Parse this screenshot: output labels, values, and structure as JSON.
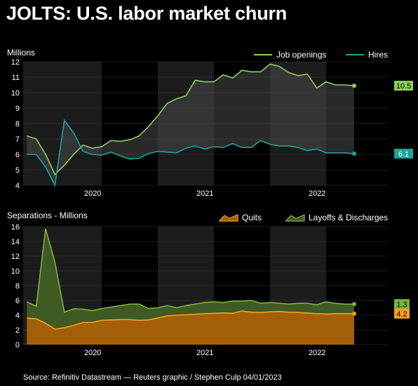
{
  "title": "JOLTS: U.S. labor market churn",
  "source": "Source: Refinitiv Datastream — Reuters graphic / Stephen Culp 04/01/2023",
  "colors": {
    "background": "#000000",
    "shade_band": "#1c1c1c",
    "grid": "#3a3a3a",
    "job_openings": "#8fcd5c",
    "hires": "#1ba39c",
    "openings_fill": "#4a4a4a",
    "quits": "#f7a01c",
    "quits_fill": "#a35f08",
    "layoffs": "#7cb342",
    "layoffs_fill": "#3f5a22"
  },
  "chart_data": [
    {
      "type": "line",
      "name": "top",
      "title": "",
      "ylabel": "Millions",
      "xlabel": "",
      "ylim": [
        4,
        12
      ],
      "yticks": [
        4,
        5,
        6,
        7,
        8,
        9,
        10,
        11,
        12
      ],
      "xlim": [
        2019.3,
        2022.55
      ],
      "xticks": [
        {
          "label": "2020",
          "value": 2019.92
        },
        {
          "label": "2021",
          "value": 2020.92
        },
        {
          "label": "2022",
          "value": 2021.92
        }
      ],
      "shaded_periods": [
        [
          2019.3,
          2020.0
        ],
        [
          2020.5,
          2021.0
        ],
        [
          2021.5,
          2022.0
        ]
      ],
      "legend_position": "top-right",
      "x": [
        "2019-05",
        "2019-06",
        "2019-07",
        "2019-08",
        "2019-09",
        "2019-10",
        "2019-11",
        "2019-12",
        "2020-01",
        "2020-02",
        "2020-03",
        "2020-04",
        "2020-05",
        "2020-06",
        "2020-07",
        "2020-08",
        "2020-09",
        "2020-10",
        "2020-11",
        "2020-12",
        "2021-01",
        "2021-02",
        "2021-03",
        "2021-04",
        "2021-05",
        "2021-06",
        "2021-07",
        "2021-08",
        "2021-09",
        "2021-10",
        "2021-11",
        "2021-12",
        "2022-01",
        "2022-02",
        "2022-03",
        "2022-04",
        "2022-05",
        "2022-06"
      ],
      "series": [
        {
          "name": "Job openings",
          "end_label": "10.5",
          "values": [
            7.2,
            7.0,
            6.0,
            4.7,
            5.3,
            6.0,
            6.6,
            6.4,
            6.5,
            6.9,
            6.85,
            6.95,
            7.2,
            7.8,
            8.5,
            9.3,
            9.6,
            9.8,
            10.8,
            10.7,
            10.7,
            11.15,
            10.95,
            11.45,
            11.35,
            11.35,
            11.85,
            11.7,
            11.3,
            11.1,
            11.2,
            10.3,
            10.7,
            10.5,
            10.5,
            10.45,
            null,
            null
          ]
        },
        {
          "name": "Hires",
          "end_label": "6.1",
          "values": [
            6.0,
            6.0,
            5.2,
            4.0,
            8.2,
            7.4,
            6.2,
            6.0,
            5.95,
            6.15,
            5.9,
            5.7,
            5.75,
            6.05,
            6.2,
            6.15,
            6.1,
            6.4,
            6.55,
            6.35,
            6.5,
            6.45,
            6.7,
            6.45,
            6.45,
            6.9,
            6.65,
            6.55,
            6.55,
            6.45,
            6.25,
            6.35,
            6.1,
            6.1,
            6.1,
            6.05,
            null,
            null
          ]
        }
      ]
    },
    {
      "type": "area",
      "name": "bottom",
      "title": "",
      "ylabel": "Separations - Millions",
      "xlabel": "",
      "ylim": [
        0,
        16
      ],
      "yticks": [
        0,
        2,
        4,
        6,
        8,
        10,
        12,
        14,
        16
      ],
      "xlim": [
        2019.3,
        2022.55
      ],
      "xticks": [
        {
          "label": "2020",
          "value": 2019.92
        },
        {
          "label": "2021",
          "value": 2020.92
        },
        {
          "label": "2022",
          "value": 2021.92
        }
      ],
      "shaded_periods": [
        [
          2019.3,
          2020.0
        ],
        [
          2020.5,
          2021.0
        ],
        [
          2021.5,
          2022.0
        ]
      ],
      "legend_position": "top-right",
      "x": [
        "2019-05",
        "2019-06",
        "2019-07",
        "2019-08",
        "2019-09",
        "2019-10",
        "2019-11",
        "2019-12",
        "2020-01",
        "2020-02",
        "2020-03",
        "2020-04",
        "2020-05",
        "2020-06",
        "2020-07",
        "2020-08",
        "2020-09",
        "2020-10",
        "2020-11",
        "2020-12",
        "2021-01",
        "2021-02",
        "2021-03",
        "2021-04",
        "2021-05",
        "2021-06",
        "2021-07",
        "2021-08",
        "2021-09",
        "2021-10",
        "2021-11",
        "2021-12",
        "2022-01",
        "2022-02",
        "2022-03",
        "2022-04",
        "2022-05",
        "2022-06"
      ],
      "series": [
        {
          "name": "Quits",
          "end_label": "4.2",
          "values": [
            3.6,
            3.5,
            2.9,
            2.1,
            2.3,
            2.6,
            3.0,
            3.0,
            3.3,
            3.35,
            3.4,
            3.4,
            3.3,
            3.35,
            3.6,
            3.9,
            4.0,
            4.05,
            4.1,
            4.2,
            4.25,
            4.3,
            4.25,
            4.55,
            4.4,
            4.35,
            4.45,
            4.5,
            4.4,
            4.35,
            4.3,
            4.2,
            4.15,
            4.2,
            4.2,
            4.2,
            null,
            null
          ]
        },
        {
          "name": "Layoffs & Discharges",
          "end_label": "1.3",
          "values": [
            5.8,
            5.2,
            15.7,
            11.2,
            4.4,
            4.85,
            4.8,
            4.6,
            4.9,
            5.1,
            5.3,
            5.5,
            5.5,
            4.9,
            5.0,
            5.3,
            5.0,
            5.3,
            5.5,
            5.7,
            5.8,
            5.7,
            5.9,
            5.9,
            6.0,
            5.6,
            5.7,
            5.6,
            5.5,
            5.6,
            5.6,
            5.4,
            5.8,
            5.6,
            5.5,
            5.5,
            null,
            null
          ]
        }
      ]
    }
  ]
}
